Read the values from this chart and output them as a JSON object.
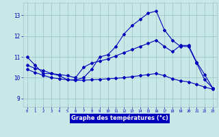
{
  "xlabel": "Graphe des températures (°c)",
  "bg_color": "#c8e8e8",
  "grid_color": "#9ec8c8",
  "line_color": "#0000bb",
  "label_bg": "#0000bb",
  "label_fg": "#ffffff",
  "x_ticks": [
    0,
    1,
    2,
    3,
    4,
    5,
    6,
    7,
    8,
    9,
    10,
    11,
    12,
    13,
    14,
    15,
    16,
    17,
    18,
    19,
    20,
    21,
    22,
    23
  ],
  "y_ticks": [
    9,
    10,
    11,
    12,
    13
  ],
  "ylim": [
    8.6,
    13.6
  ],
  "xlim": [
    -0.5,
    23.5
  ],
  "curve1_y": [
    11.0,
    10.6,
    10.2,
    10.2,
    10.1,
    9.9,
    9.9,
    10.0,
    10.4,
    11.0,
    11.1,
    11.5,
    12.1,
    12.5,
    12.8,
    13.1,
    13.2,
    12.3,
    11.8,
    11.5,
    11.5,
    10.7,
    9.9,
    9.5
  ],
  "curve2_y": [
    10.6,
    10.45,
    10.35,
    10.2,
    10.15,
    10.1,
    10.0,
    10.5,
    10.7,
    10.8,
    10.9,
    11.05,
    11.2,
    11.35,
    11.5,
    11.65,
    11.8,
    11.5,
    11.25,
    11.55,
    11.55,
    10.75,
    10.15,
    9.5
  ],
  "curve3_y": [
    10.4,
    10.25,
    10.12,
    10.0,
    9.95,
    9.9,
    9.87,
    9.88,
    9.9,
    9.92,
    9.95,
    9.97,
    10.0,
    10.05,
    10.1,
    10.15,
    10.2,
    10.1,
    9.95,
    9.85,
    9.8,
    9.68,
    9.55,
    9.45
  ]
}
